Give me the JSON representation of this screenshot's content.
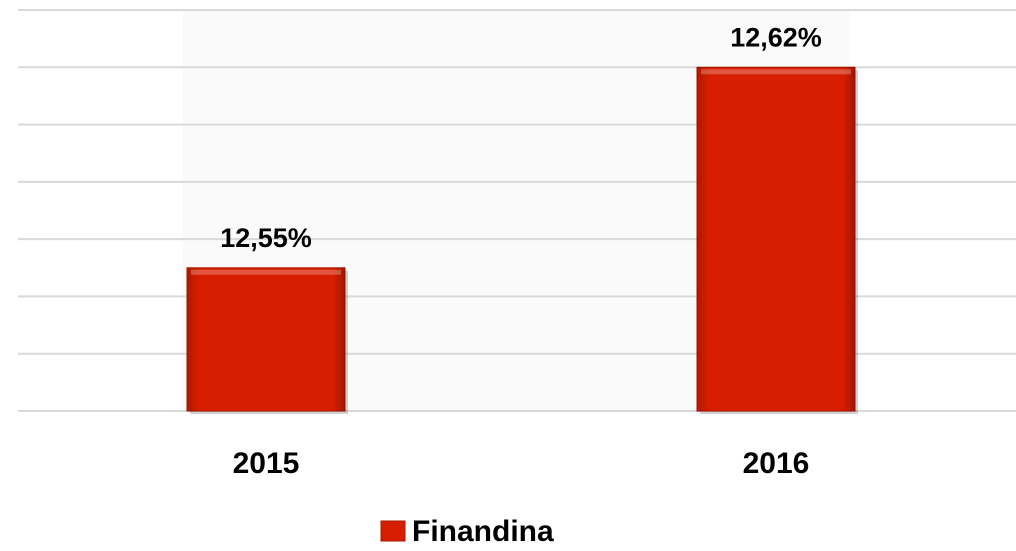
{
  "chart_data": {
    "type": "bar",
    "categories": [
      "2015",
      "2016"
    ],
    "series": [
      {
        "name": "Finandina",
        "color": "#d81e00",
        "values": [
          12.55,
          12.62
        ],
        "value_labels": [
          "12,55%",
          "12,62%"
        ]
      }
    ],
    "ylim": [
      12.5,
      12.64
    ],
    "yticks": [
      12.5,
      12.52,
      12.54,
      12.56,
      12.58,
      12.6,
      12.62,
      12.64
    ],
    "grid": true,
    "legend": "bottom"
  }
}
